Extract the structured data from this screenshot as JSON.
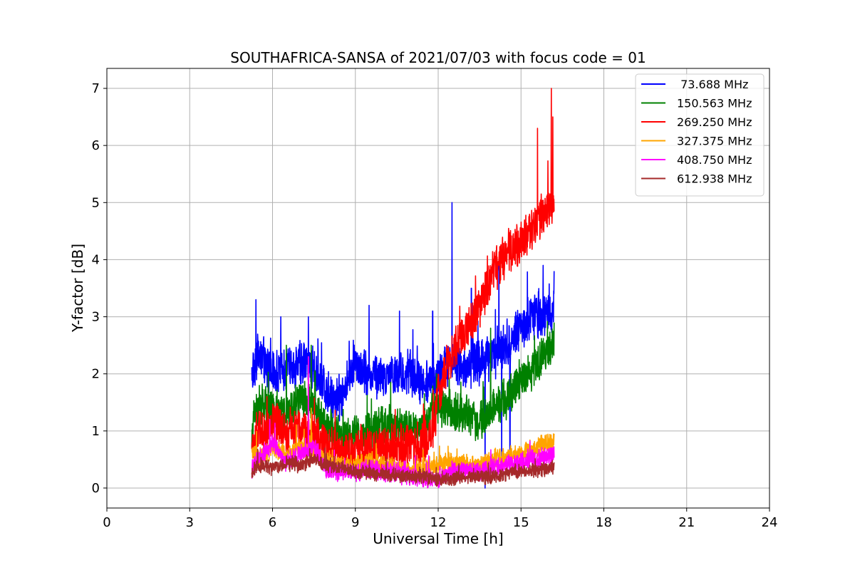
{
  "chart_data": {
    "type": "line",
    "title": "SOUTHAFRICA-SANSA of 2021/07/03 with focus code = 01",
    "xlabel": "Universal Time [h]",
    "ylabel": "Y-factor [dB]",
    "xlim": [
      0,
      24
    ],
    "ylim": [
      -0.35,
      7.35
    ],
    "xticks": [
      0,
      3,
      6,
      9,
      12,
      15,
      18,
      21,
      24
    ],
    "yticks": [
      0,
      1,
      2,
      3,
      4,
      5,
      6,
      7
    ],
    "grid": true,
    "legend_position": "top-right",
    "series": [
      {
        "name": " 73.688 MHz",
        "color": "#0000ff",
        "noise": 0.45,
        "x": [
          5.25,
          5.5,
          6.0,
          6.5,
          7.0,
          7.5,
          8.0,
          8.5,
          9.0,
          9.5,
          10.0,
          10.5,
          11.0,
          11.5,
          12.0,
          12.5,
          13.0,
          13.5,
          14.0,
          14.5,
          15.0,
          15.5,
          16.0,
          16.2
        ],
        "y": [
          2.0,
          2.4,
          2.0,
          2.1,
          2.2,
          2.1,
          1.6,
          1.6,
          2.2,
          2.0,
          1.9,
          2.0,
          2.0,
          1.85,
          1.9,
          2.3,
          2.1,
          2.2,
          2.3,
          2.5,
          2.8,
          3.0,
          3.1,
          3.1
        ],
        "spikes": [
          [
            5.4,
            3.3
          ],
          [
            6.3,
            3.0
          ],
          [
            7.3,
            3.0
          ],
          [
            9.5,
            3.2
          ],
          [
            10.6,
            3.1
          ],
          [
            11.8,
            3.1
          ],
          [
            12.5,
            5.0
          ],
          [
            13.2,
            3.5
          ],
          [
            14.2,
            3.9
          ],
          [
            15.8,
            3.9
          ],
          [
            16.2,
            3.8
          ],
          [
            14.3,
            0.3
          ],
          [
            14.6,
            0.4
          ],
          [
            13.7,
            0.0
          ]
        ]
      },
      {
        "name": "150.563 MHz",
        "color": "#008000",
        "noise": 0.4,
        "x": [
          5.25,
          5.5,
          6.0,
          6.5,
          7.0,
          7.5,
          8.0,
          8.5,
          9.0,
          9.5,
          10.0,
          10.5,
          11.0,
          11.5,
          12.0,
          12.5,
          13.0,
          13.5,
          14.0,
          14.5,
          15.0,
          15.5,
          16.0,
          16.2
        ],
        "y": [
          1.0,
          1.5,
          1.4,
          1.3,
          1.6,
          1.4,
          1.0,
          0.9,
          0.9,
          1.0,
          1.1,
          1.1,
          1.0,
          1.1,
          1.5,
          1.3,
          1.3,
          1.1,
          1.4,
          1.6,
          1.9,
          2.1,
          2.4,
          2.5
        ],
        "spikes": [
          [
            6.5,
            2.5
          ],
          [
            7.4,
            2.5
          ],
          [
            13.9,
            2.8
          ],
          [
            16.2,
            2.9
          ]
        ]
      },
      {
        "name": "269.250 MHz",
        "color": "#ff0000",
        "noise": 0.45,
        "x": [
          5.25,
          5.5,
          6.0,
          6.5,
          7.0,
          7.5,
          8.0,
          8.5,
          9.0,
          9.5,
          10.0,
          10.5,
          11.0,
          11.5,
          11.8,
          12.0,
          12.5,
          13.0,
          13.5,
          14.0,
          14.5,
          15.0,
          15.5,
          15.8,
          16.1,
          16.2
        ],
        "y": [
          0.7,
          1.0,
          1.1,
          1.0,
          1.0,
          0.9,
          0.7,
          0.6,
          0.7,
          0.7,
          0.7,
          0.7,
          0.75,
          0.8,
          1.0,
          1.6,
          2.4,
          2.7,
          3.2,
          3.8,
          4.1,
          4.3,
          4.6,
          4.8,
          5.0,
          5.0
        ],
        "spikes": [
          [
            5.8,
            1.6
          ],
          [
            7.3,
            2.3
          ],
          [
            15.6,
            6.3
          ],
          [
            16.1,
            7.0
          ],
          [
            16.15,
            6.5
          ]
        ]
      },
      {
        "name": "327.375 MHz",
        "color": "#ffa500",
        "noise": 0.2,
        "x": [
          5.25,
          5.5,
          6.0,
          6.5,
          7.0,
          7.5,
          8.0,
          8.5,
          9.0,
          9.5,
          10.0,
          10.5,
          11.0,
          11.5,
          12.0,
          12.5,
          13.0,
          13.5,
          14.0,
          14.5,
          15.0,
          15.5,
          16.0,
          16.2
        ],
        "y": [
          0.6,
          0.5,
          0.7,
          0.6,
          0.7,
          0.6,
          0.5,
          0.4,
          0.4,
          0.45,
          0.4,
          0.35,
          0.3,
          0.35,
          0.4,
          0.45,
          0.4,
          0.4,
          0.5,
          0.55,
          0.6,
          0.7,
          0.8,
          0.85
        ],
        "spikes": [
          [
            7.4,
            1.4
          ]
        ]
      },
      {
        "name": "408.750 MHz",
        "color": "#ff00ff",
        "noise": 0.2,
        "x": [
          5.25,
          5.5,
          6.0,
          6.5,
          7.0,
          7.5,
          8.0,
          8.5,
          9.0,
          9.5,
          10.0,
          10.5,
          11.0,
          11.5,
          12.0,
          12.5,
          13.0,
          13.5,
          14.0,
          14.5,
          15.0,
          15.5,
          16.0,
          16.2
        ],
        "y": [
          0.3,
          0.5,
          0.8,
          0.4,
          0.6,
          0.7,
          0.3,
          0.3,
          0.25,
          0.35,
          0.3,
          0.25,
          0.2,
          0.15,
          0.15,
          0.3,
          0.3,
          0.3,
          0.35,
          0.4,
          0.45,
          0.5,
          0.55,
          0.6
        ],
        "spikes": [
          [
            7.3,
            2.3
          ],
          [
            5.9,
            1.2
          ]
        ]
      },
      {
        "name": "612.938 MHz",
        "color": "#a52a2a",
        "noise": 0.15,
        "x": [
          5.25,
          5.5,
          6.0,
          6.5,
          7.0,
          7.5,
          8.0,
          8.5,
          9.0,
          9.5,
          10.0,
          10.5,
          11.0,
          11.5,
          12.0,
          12.5,
          13.0,
          13.5,
          14.0,
          14.5,
          15.0,
          15.5,
          16.0,
          16.2
        ],
        "y": [
          0.25,
          0.4,
          0.35,
          0.45,
          0.4,
          0.5,
          0.4,
          0.35,
          0.3,
          0.25,
          0.25,
          0.2,
          0.2,
          0.2,
          0.15,
          0.15,
          0.2,
          0.2,
          0.2,
          0.25,
          0.3,
          0.3,
          0.35,
          0.35
        ],
        "spikes": []
      }
    ]
  }
}
